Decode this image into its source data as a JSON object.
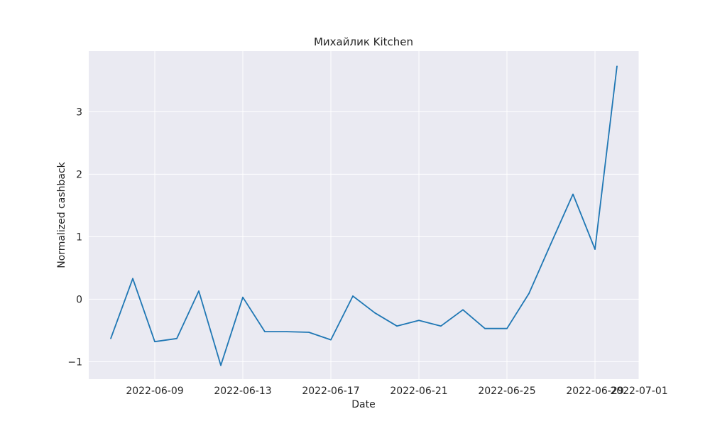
{
  "chart_data": {
    "type": "line",
    "title": "Михайлик Kitchen",
    "xlabel": "Date",
    "ylabel": "Normalized cashback",
    "grid": true,
    "legend": "none",
    "xlim": [
      "2022-06-06",
      "2022-07-01"
    ],
    "ylim": [
      -1.28,
      3.97
    ],
    "x_ticks": [
      "2022-06-09",
      "2022-06-13",
      "2022-06-17",
      "2022-06-21",
      "2022-06-25",
      "2022-06-29",
      "2022-07-01"
    ],
    "y_ticks": [
      -1,
      0,
      1,
      2,
      3
    ],
    "y_tick_labels": [
      "−1",
      "0",
      "1",
      "2",
      "3"
    ],
    "colors": {
      "background": "#eaeaf2",
      "grid": "#ffffff",
      "line": "#1f77b4"
    },
    "series": [
      {
        "x": [
          "2022-06-07",
          "2022-06-08",
          "2022-06-09",
          "2022-06-10",
          "2022-06-11",
          "2022-06-12",
          "2022-06-13",
          "2022-06-14",
          "2022-06-15",
          "2022-06-16",
          "2022-06-17",
          "2022-06-18",
          "2022-06-19",
          "2022-06-20",
          "2022-06-21",
          "2022-06-22",
          "2022-06-23",
          "2022-06-24",
          "2022-06-25",
          "2022-06-26",
          "2022-06-27",
          "2022-06-28",
          "2022-06-29",
          "2022-06-30"
        ],
        "y": [
          -0.63,
          0.33,
          -0.68,
          -0.63,
          0.13,
          -1.06,
          0.03,
          -0.52,
          -0.52,
          -0.53,
          -0.65,
          0.05,
          -0.22,
          -0.43,
          -0.34,
          -0.43,
          -0.17,
          -0.47,
          -0.47,
          0.09,
          0.89,
          1.68,
          0.8,
          3.73
        ]
      }
    ]
  }
}
